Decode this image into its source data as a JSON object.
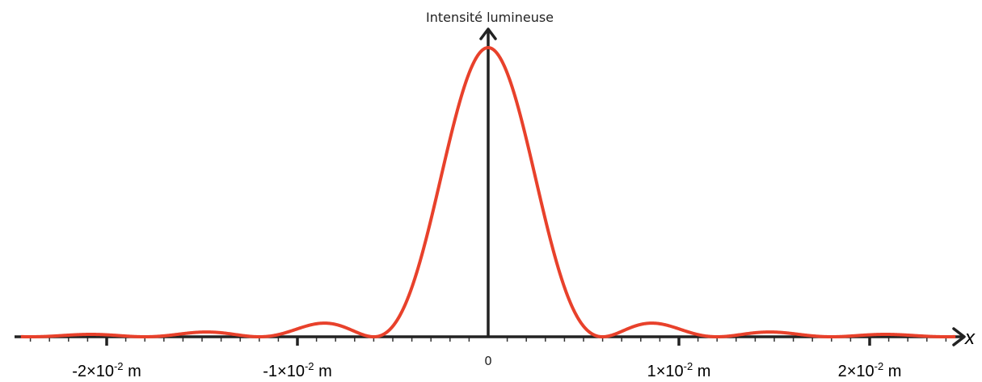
{
  "chart_data": {
    "type": "line",
    "title": "",
    "ylabel": "Intensité lumineuse",
    "xlabel": "x",
    "x_unit": "m",
    "xlim": [
      -0.0245,
      0.0245
    ],
    "ylim": [
      0,
      1
    ],
    "grid": false,
    "legend": "none",
    "series": [
      {
        "color": "#e8412b",
        "function": "sinc2",
        "amplitude": 1,
        "first_zero": 0.006,
        "points": [
          {
            "x": -0.018,
            "y": 0.0
          },
          {
            "x": -0.015,
            "y": 0.016
          },
          {
            "x": -0.012,
            "y": 0.0
          },
          {
            "x": -0.0086,
            "y": 0.047
          },
          {
            "x": -0.006,
            "y": 0.0
          },
          {
            "x": 0.0,
            "y": 1.0
          },
          {
            "x": 0.006,
            "y": 0.0
          },
          {
            "x": 0.0086,
            "y": 0.047
          },
          {
            "x": 0.012,
            "y": 0.0
          },
          {
            "x": 0.015,
            "y": 0.016
          },
          {
            "x": 0.018,
            "y": 0.0
          }
        ]
      }
    ],
    "ticks": [
      {
        "value": -0.02,
        "base": "-2×10",
        "exp": "-2",
        "unit": " m"
      },
      {
        "value": -0.01,
        "base": "-1×10",
        "exp": "-2",
        "unit": " m"
      },
      {
        "value": 0.0,
        "label": "0"
      },
      {
        "value": 0.01,
        "base": "1×10",
        "exp": "-2",
        "unit": " m"
      },
      {
        "value": 0.02,
        "base": "2×10",
        "exp": "-2",
        "unit": " m"
      }
    ],
    "minor_tick_step": 0.001
  }
}
